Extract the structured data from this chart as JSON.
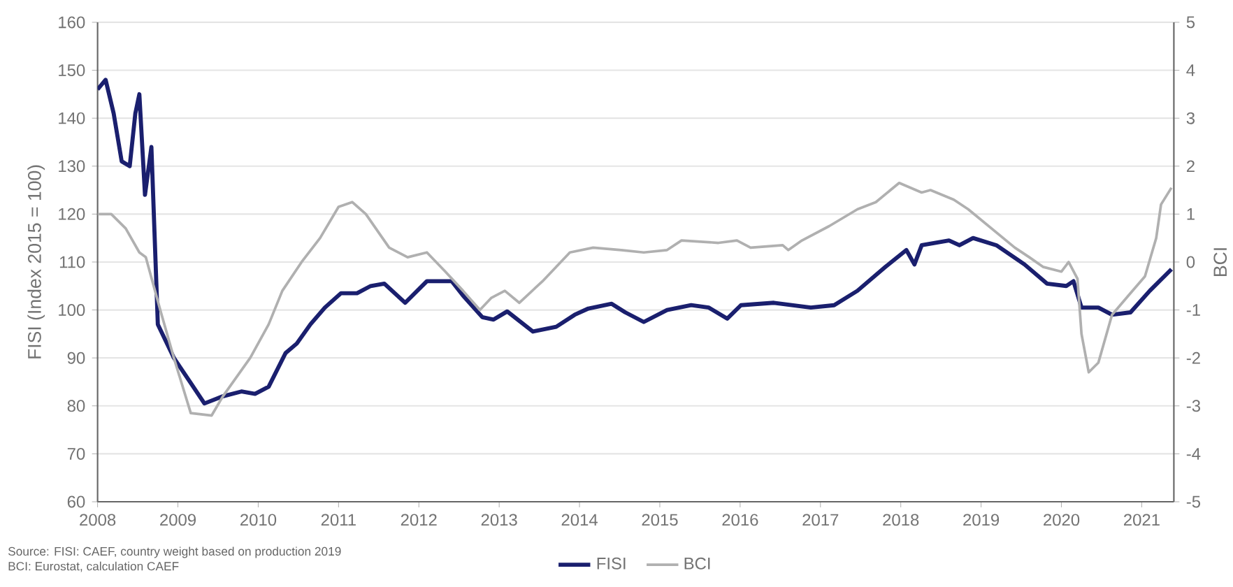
{
  "chart_data": {
    "type": "line",
    "ylabel": "FISI (Index 2015 = 100)",
    "y2label": "BCI",
    "xlim": [
      2008,
      2021.4
    ],
    "xticks": [
      2008,
      2009,
      2010,
      2011,
      2012,
      2013,
      2014,
      2015,
      2016,
      2017,
      2018,
      2019,
      2020,
      2021
    ],
    "ylim": [
      60,
      160
    ],
    "yticks": [
      60,
      70,
      80,
      90,
      100,
      110,
      120,
      130,
      140,
      150,
      160
    ],
    "y2lim": [
      -5,
      5
    ],
    "y2ticks": [
      -5,
      -4,
      -3,
      -2,
      -1,
      0,
      1,
      2,
      3,
      4,
      5
    ],
    "grid": "y",
    "legend": "bottom",
    "annotations": [
      "Source: FISI: CAEF, country weight based on production 2019",
      "BCI: Eurostat, calculation CAEF"
    ],
    "series": [
      {
        "name": "FISI",
        "color": "#1a1f6e",
        "x": [
          2008.0,
          2008.05,
          2008.1,
          2008.2,
          2008.3,
          2008.4,
          2008.47,
          2008.52,
          2008.59,
          2008.67,
          2008.75,
          2008.95,
          2009.15,
          2009.33,
          2009.56,
          2009.79,
          2009.96,
          2010.13,
          2010.34,
          2010.48,
          2010.65,
          2010.83,
          2011.03,
          2011.23,
          2011.4,
          2011.57,
          2011.83,
          2012.1,
          2012.27,
          2012.41,
          2012.55,
          2012.79,
          2012.93,
          2013.1,
          2013.42,
          2013.71,
          2013.94,
          2014.11,
          2014.4,
          2014.57,
          2014.8,
          2015.09,
          2015.39,
          2015.61,
          2015.84,
          2016.01,
          2016.42,
          2016.88,
          2017.17,
          2017.46,
          2017.81,
          2018.07,
          2018.17,
          2018.26,
          2018.6,
          2018.73,
          2018.9,
          2019.19,
          2019.54,
          2019.82,
          2020.06,
          2020.15,
          2020.25,
          2020.46,
          2020.63,
          2020.86,
          2021.1,
          2021.37
        ],
        "values": [
          146,
          147,
          148,
          141,
          131,
          130,
          141,
          145,
          124,
          134,
          97,
          90,
          85,
          80.5,
          82,
          83,
          82.5,
          84,
          91,
          93,
          97,
          100.5,
          103.5,
          103.5,
          105,
          105.5,
          101.5,
          106,
          106,
          106,
          103,
          98.5,
          98,
          99.7,
          95.5,
          96.5,
          99,
          100.3,
          101.3,
          99.5,
          97.5,
          100,
          101,
          100.5,
          98.2,
          101,
          101.5,
          100.5,
          101,
          104,
          109,
          112.5,
          109.5,
          113.5,
          114.5,
          113.5,
          115,
          113.5,
          109.5,
          105.5,
          105,
          106,
          100.5,
          100.5,
          99,
          99.5,
          104,
          108.5
        ]
      },
      {
        "name": "BCI",
        "color": "#b0b0b0",
        "axis": "y2",
        "x": [
          2008.0,
          2008.17,
          2008.35,
          2008.52,
          2008.6,
          2008.78,
          2008.95,
          2009.16,
          2009.42,
          2009.56,
          2009.9,
          2010.13,
          2010.3,
          2010.54,
          2010.77,
          2011.0,
          2011.17,
          2011.34,
          2011.63,
          2011.86,
          2012.1,
          2012.33,
          2012.55,
          2012.76,
          2012.9,
          2013.07,
          2013.25,
          2013.54,
          2013.88,
          2014.17,
          2014.52,
          2014.8,
          2015.09,
          2015.27,
          2015.73,
          2015.96,
          2016.13,
          2016.53,
          2016.6,
          2016.77,
          2017.11,
          2017.46,
          2017.69,
          2017.98,
          2018.26,
          2018.37,
          2018.66,
          2018.84,
          2019.13,
          2019.42,
          2019.6,
          2019.77,
          2020.0,
          2020.09,
          2020.2,
          2020.25,
          2020.34,
          2020.46,
          2020.63,
          2020.86,
          2021.04,
          2021.18,
          2021.24,
          2021.37
        ],
        "values": [
          1.0,
          1.0,
          0.7,
          0.2,
          0.1,
          -1.0,
          -2.0,
          -3.15,
          -3.2,
          -2.8,
          -2.0,
          -1.3,
          -0.6,
          0,
          0.5,
          1.15,
          1.25,
          1.0,
          0.3,
          0.1,
          0.2,
          -0.2,
          -0.6,
          -1.0,
          -0.75,
          -0.6,
          -0.85,
          -0.4,
          0.2,
          0.3,
          0.25,
          0.2,
          0.25,
          0.45,
          0.4,
          0.45,
          0.3,
          0.35,
          0.25,
          0.45,
          0.75,
          1.1,
          1.25,
          1.65,
          1.45,
          1.5,
          1.3,
          1.1,
          0.7,
          0.3,
          0.1,
          -0.1,
          -0.2,
          0.0,
          -0.35,
          -1.5,
          -2.3,
          -2.1,
          -1.1,
          -0.65,
          -0.3,
          0.5,
          1.2,
          1.55
        ]
      }
    ]
  }
}
